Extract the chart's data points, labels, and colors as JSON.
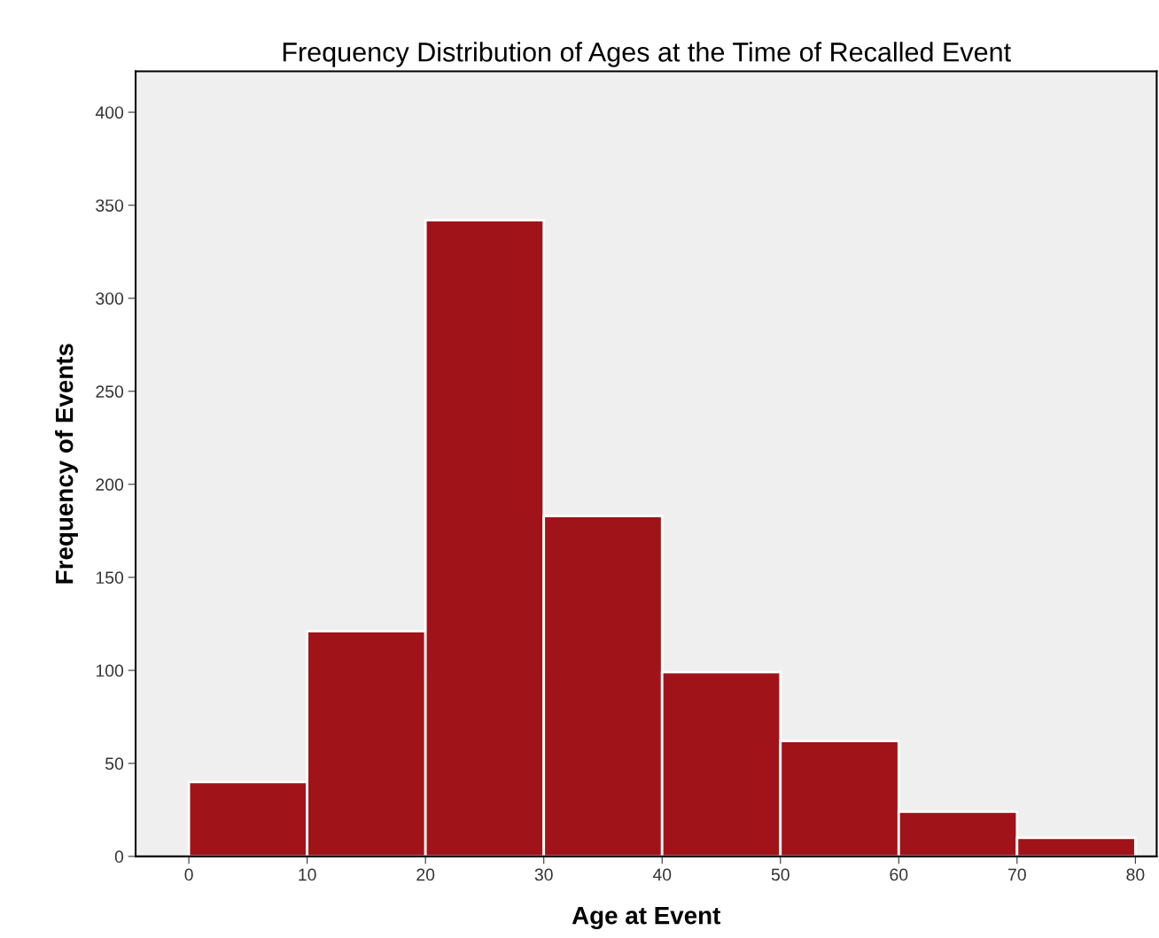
{
  "chart_data": {
    "type": "histogram",
    "title": "Frequency Distribution of Ages at the Time of Recalled Event",
    "xlabel": "Age at Event",
    "ylabel": "Frequency of Events",
    "bins": [
      0,
      10,
      20,
      30,
      40,
      50,
      60,
      70,
      80
    ],
    "values": [
      40,
      121,
      342,
      183,
      99,
      62,
      24,
      10
    ],
    "color": "#a01318",
    "xlim": [
      -4.5,
      81.8
    ],
    "xticks": [
      0,
      10,
      20,
      30,
      40,
      50,
      60,
      70,
      80
    ],
    "ylim": [
      0,
      422
    ],
    "yticks": [
      0,
      50,
      100,
      150,
      200,
      250,
      300,
      350,
      400
    ],
    "grid": false
  }
}
